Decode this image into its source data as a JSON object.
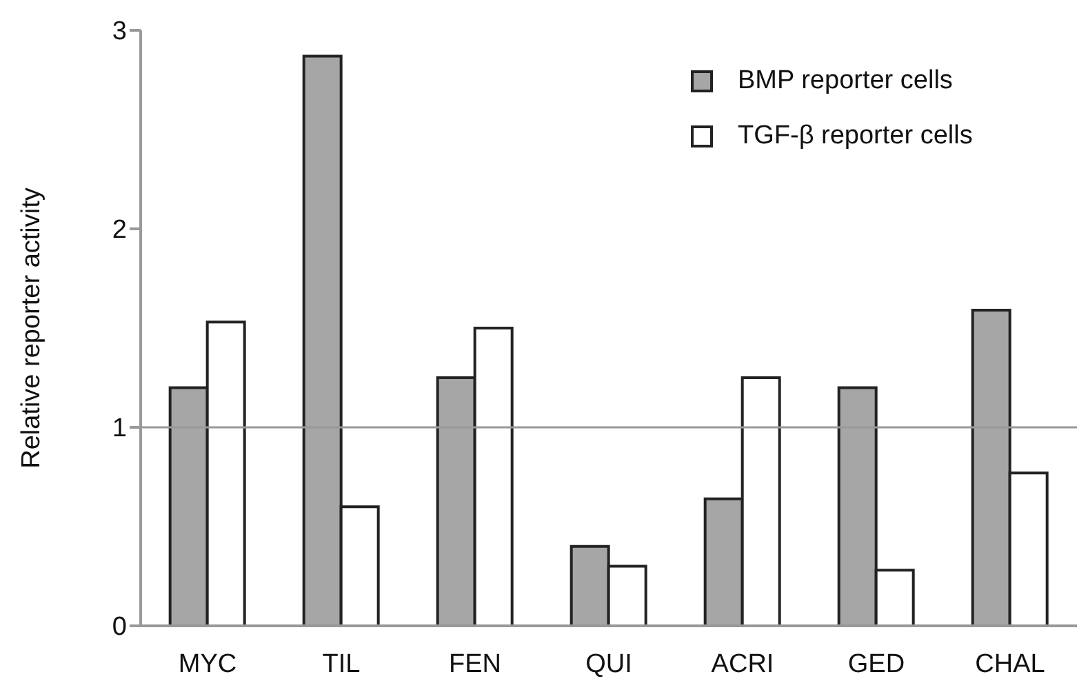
{
  "chart_data": {
    "type": "bar",
    "ylabel": "Relative reporter activity",
    "categories": [
      "MYC",
      "TIL",
      "FEN",
      "QUI",
      "ACRI",
      "GED",
      "CHAL"
    ],
    "series": [
      {
        "name": "BMP reporter cells",
        "color": "#a6a6a6",
        "values": [
          1.2,
          2.87,
          1.25,
          0.4,
          0.64,
          1.2,
          1.59
        ]
      },
      {
        "name": "TGF-β reporter cells",
        "color": "#ffffff",
        "values": [
          1.53,
          0.6,
          1.5,
          0.3,
          1.25,
          0.28,
          0.77
        ]
      }
    ],
    "ylim": [
      0,
      3
    ],
    "yticks": [
      0,
      1,
      2,
      3
    ],
    "grid": false,
    "legend": "top right",
    "ref_lines": [
      {
        "axis": "y",
        "value": 1,
        "color": "#999999"
      }
    ]
  }
}
